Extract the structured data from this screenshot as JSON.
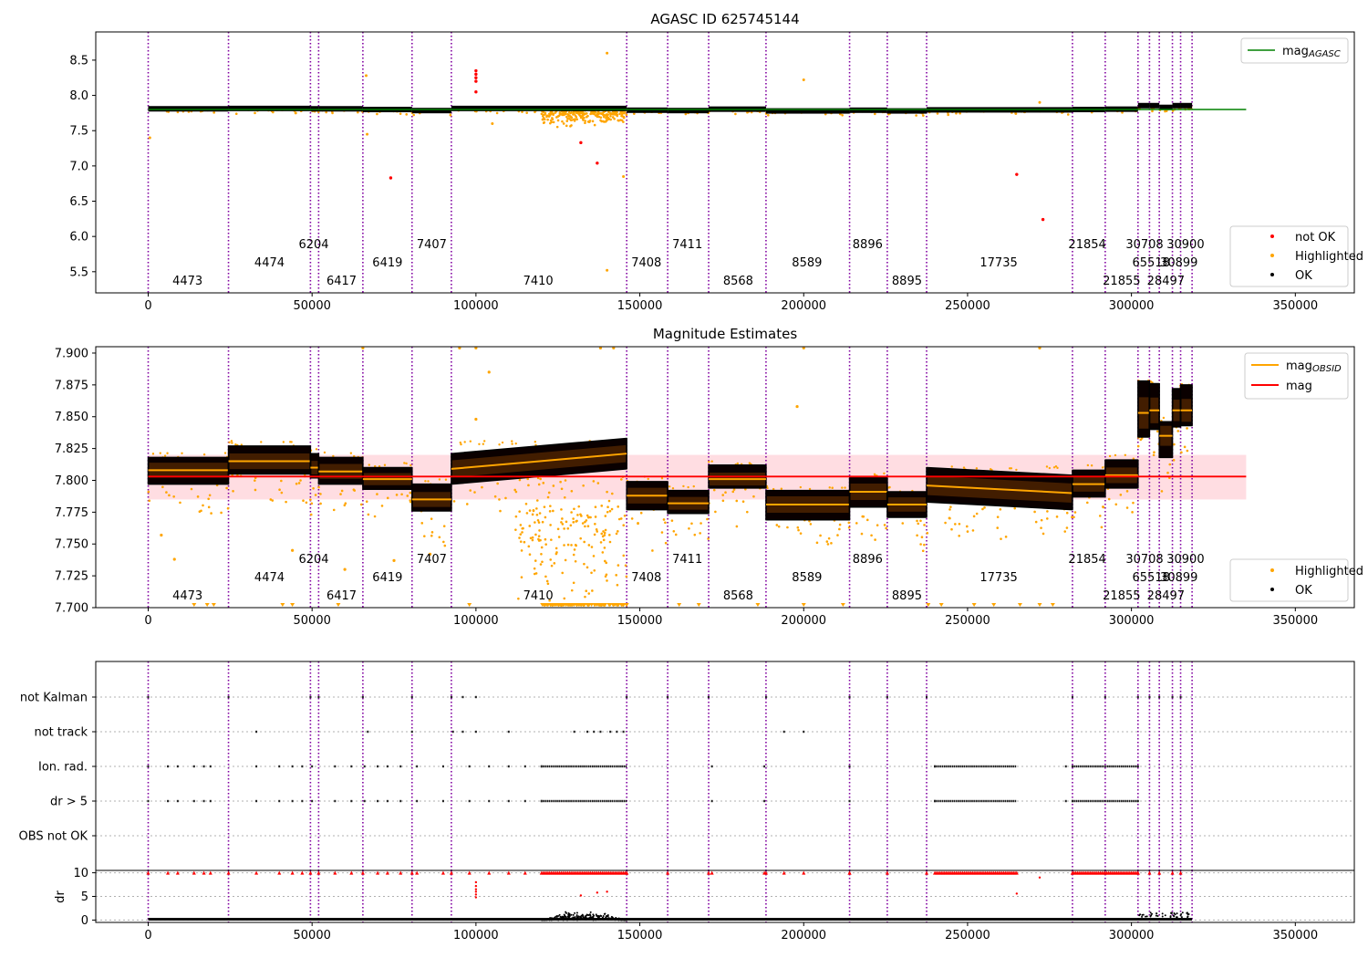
{
  "chart_data": [
    {
      "type": "scatter",
      "title": "AGASC ID 625745144",
      "xlim": [
        -16000,
        368000
      ],
      "ylim": [
        5.2,
        8.9
      ],
      "xticks": [
        0,
        50000,
        100000,
        150000,
        200000,
        250000,
        300000,
        350000
      ],
      "xtick_labels": [
        "0",
        "50000",
        "100000",
        "150000",
        "200000",
        "250000",
        "300000",
        "350000"
      ],
      "yticks": [
        5.5,
        6.0,
        6.5,
        7.0,
        7.5,
        8.0,
        8.5
      ],
      "ytick_labels": [
        "5.5",
        "6.0",
        "6.5",
        "7.0",
        "7.5",
        "8.0",
        "8.5"
      ],
      "mag_agasc": 7.8,
      "mag_agasc_x_range": [
        0,
        335000
      ],
      "legend_top": {
        "position": "top-right",
        "entries": [
          {
            "label": "mag",
            "sub": "AGASC",
            "color": "#008000",
            "kind": "line"
          }
        ]
      },
      "legend_bottom": {
        "position": "bottom-right",
        "entries": [
          {
            "label": "not OK",
            "color": "#ff0000",
            "kind": "dot"
          },
          {
            "label": "Highlighted",
            "color": "#ffa500",
            "kind": "dot"
          },
          {
            "label": "OK",
            "color": "#000000",
            "kind": "dot"
          }
        ]
      },
      "ok_segments": [
        {
          "x": [
            0,
            24500
          ],
          "y": 7.81
        },
        {
          "x": [
            24500,
            49500
          ],
          "y": 7.815
        },
        {
          "x": [
            49500,
            52000
          ],
          "y": 7.81
        },
        {
          "x": [
            52000,
            65500
          ],
          "y": 7.81
        },
        {
          "x": [
            65500,
            80500
          ],
          "y": 7.8
        },
        {
          "x": [
            80500,
            92500
          ],
          "y": 7.785
        },
        {
          "x": [
            92500,
            146000
          ],
          "y": 7.815
        },
        {
          "x": [
            146000,
            158500
          ],
          "y": 7.79
        },
        {
          "x": [
            158500,
            171000
          ],
          "y": 7.785
        },
        {
          "x": [
            171000,
            188500
          ],
          "y": 7.805
        },
        {
          "x": [
            188500,
            214000
          ],
          "y": 7.78
        },
        {
          "x": [
            214000,
            225500
          ],
          "y": 7.79
        },
        {
          "x": [
            225500,
            237500
          ],
          "y": 7.78
        },
        {
          "x": [
            237500,
            282000
          ],
          "y": 7.795
        },
        {
          "x": [
            282000,
            292000
          ],
          "y": 7.8
        },
        {
          "x": [
            292000,
            302000
          ],
          "y": 7.805
        },
        {
          "x": [
            302000,
            305500
          ],
          "y": 7.855
        },
        {
          "x": [
            305500,
            308500
          ],
          "y": 7.855
        },
        {
          "x": [
            308500,
            312500
          ],
          "y": 7.83
        },
        {
          "x": [
            312500,
            315000
          ],
          "y": 7.855
        },
        {
          "x": [
            315000,
            318500
          ],
          "y": 7.855
        }
      ],
      "not_ok_points": [
        [
          100000,
          8.35
        ],
        [
          100000,
          8.3
        ],
        [
          100000,
          8.25
        ],
        [
          100000,
          8.2
        ],
        [
          100000,
          8.05
        ],
        [
          74000,
          6.83
        ],
        [
          132000,
          7.33
        ],
        [
          137000,
          7.04
        ],
        [
          265000,
          6.88
        ],
        [
          273000,
          6.24
        ]
      ],
      "highlighted_points": [
        [
          500,
          7.4
        ],
        [
          66500,
          8.28
        ],
        [
          66800,
          7.45
        ],
        [
          140000,
          8.6
        ],
        [
          200000,
          8.22
        ],
        [
          140000,
          5.52
        ],
        [
          145000,
          6.85
        ],
        [
          272000,
          7.9
        ],
        [
          45000,
          7.75
        ],
        [
          105000,
          7.6
        ]
      ]
    },
    {
      "type": "scatter",
      "title": "Magnitude Estimates",
      "xlim": [
        -16000,
        368000
      ],
      "ylim": [
        7.7,
        7.905
      ],
      "xticks": [
        0,
        50000,
        100000,
        150000,
        200000,
        250000,
        300000,
        350000
      ],
      "xtick_labels": [
        "0",
        "50000",
        "100000",
        "150000",
        "200000",
        "250000",
        "300000",
        "350000"
      ],
      "yticks": [
        7.7,
        7.725,
        7.75,
        7.775,
        7.8,
        7.825,
        7.85,
        7.875,
        7.9
      ],
      "ytick_labels": [
        "7.700",
        "7.725",
        "7.750",
        "7.775",
        "7.800",
        "7.825",
        "7.850",
        "7.875",
        "7.900"
      ],
      "mag": 7.803,
      "mag_band": [
        7.785,
        7.82
      ],
      "mag_x_range": [
        0,
        335000
      ],
      "legend_top": {
        "position": "top-right",
        "entries": [
          {
            "label": "mag",
            "sub": "OBSID",
            "color": "#ffa500",
            "kind": "line"
          },
          {
            "label": "mag",
            "sub": "",
            "color": "#ff0000",
            "kind": "line"
          }
        ]
      },
      "legend_bottom": {
        "position": "bottom-right",
        "entries": [
          {
            "label": "Highlighted",
            "color": "#ffa500",
            "kind": "dot"
          },
          {
            "label": "OK",
            "color": "#000000",
            "kind": "dot"
          }
        ]
      },
      "obsid_segments": [
        {
          "x": [
            0,
            24500
          ],
          "mean": 7.808,
          "lo": 7.797,
          "hi": 7.818
        },
        {
          "x": [
            24500,
            49500
          ],
          "mean": 7.815,
          "lo": 7.805,
          "hi": 7.827
        },
        {
          "x": [
            49500,
            52000
          ],
          "mean": 7.81,
          "lo": 7.802,
          "hi": 7.821
        },
        {
          "x": [
            52000,
            65500
          ],
          "mean": 7.807,
          "lo": 7.797,
          "hi": 7.818
        },
        {
          "x": [
            65500,
            80500
          ],
          "mean": 7.801,
          "lo": 7.793,
          "hi": 7.81
        },
        {
          "x": [
            80500,
            92500
          ],
          "mean": 7.785,
          "lo": 7.776,
          "hi": 7.797
        },
        {
          "x": [
            92500,
            146000
          ],
          "mean": 7.815,
          "lo": 7.803,
          "hi": 7.827,
          "slope": 0.012
        },
        {
          "x": [
            146000,
            158500
          ],
          "mean": 7.788,
          "lo": 7.777,
          "hi": 7.799
        },
        {
          "x": [
            158500,
            171000
          ],
          "mean": 7.782,
          "lo": 7.774,
          "hi": 7.792
        },
        {
          "x": [
            171000,
            188500
          ],
          "mean": 7.801,
          "lo": 7.794,
          "hi": 7.812
        },
        {
          "x": [
            188500,
            214000
          ],
          "mean": 7.781,
          "lo": 7.769,
          "hi": 7.792
        },
        {
          "x": [
            214000,
            225500
          ],
          "mean": 7.791,
          "lo": 7.779,
          "hi": 7.802
        },
        {
          "x": [
            225500,
            237500
          ],
          "mean": 7.781,
          "lo": 7.771,
          "hi": 7.791
        },
        {
          "x": [
            237500,
            282000
          ],
          "mean": 7.793,
          "lo": 7.78,
          "hi": 7.807,
          "slope": -0.006
        },
        {
          "x": [
            282000,
            292000
          ],
          "mean": 7.797,
          "lo": 7.787,
          "hi": 7.808
        },
        {
          "x": [
            292000,
            302000
          ],
          "mean": 7.804,
          "lo": 7.794,
          "hi": 7.816
        },
        {
          "x": [
            302000,
            305500
          ],
          "mean": 7.853,
          "lo": 7.834,
          "hi": 7.878
        },
        {
          "x": [
            305500,
            308500
          ],
          "mean": 7.855,
          "lo": 7.84,
          "hi": 7.876
        },
        {
          "x": [
            308500,
            312500
          ],
          "mean": 7.835,
          "lo": 7.818,
          "hi": 7.846
        },
        {
          "x": [
            312500,
            315000
          ],
          "mean": 7.855,
          "lo": 7.842,
          "hi": 7.872
        },
        {
          "x": [
            315000,
            318500
          ],
          "mean": 7.855,
          "lo": 7.843,
          "hi": 7.875
        }
      ],
      "highlighted_points": [
        [
          65500,
          7.904
        ],
        [
          95000,
          7.904
        ],
        [
          100000,
          7.904
        ],
        [
          138000,
          7.904
        ],
        [
          142000,
          7.904
        ],
        [
          200000,
          7.904
        ],
        [
          272000,
          7.904
        ],
        [
          104000,
          7.885
        ],
        [
          100000,
          7.848
        ],
        [
          198000,
          7.858
        ],
        [
          4000,
          7.757
        ],
        [
          8000,
          7.738
        ],
        [
          44000,
          7.745
        ],
        [
          60000,
          7.73
        ],
        [
          75000,
          7.737
        ],
        [
          86000,
          7.742
        ]
      ]
    },
    {
      "type": "scatter",
      "title": "",
      "xlim": [
        -16000,
        368000
      ],
      "categories": [
        "not Kalman",
        "not track",
        "Ion. rad.",
        "dr > 5",
        "OBS not OK"
      ],
      "flags": {
        "not Kalman": [
          0,
          24500,
          49500,
          52000,
          65500,
          80500,
          92500,
          96000,
          100000,
          146000,
          158500,
          171000,
          188500,
          214000,
          225500,
          237500,
          282000,
          292000,
          302000,
          305500,
          308500,
          312500,
          315000
        ],
        "not track": [
          33000,
          67000,
          80500,
          93000,
          96000,
          100000,
          110000,
          130000,
          134000,
          136000,
          138000,
          141000,
          143000,
          145000,
          194000,
          200000
        ],
        "Ion. rad.": [
          0,
          6000,
          9000,
          14000,
          17000,
          19000,
          33000,
          40000,
          44000,
          47000,
          50000,
          57000,
          62000,
          66000,
          70000,
          73000,
          77000,
          82000,
          90000,
          98000,
          104000,
          110000,
          115000,
          120000,
          172000,
          188000,
          214000,
          240000,
          280000,
          282000,
          302000
        ],
        "dr > 5": [
          0,
          6000,
          9000,
          14000,
          17000,
          19000,
          33000,
          40000,
          44000,
          47000,
          50000,
          57000,
          62000,
          66000,
          70000,
          73000,
          77000,
          82000,
          90000,
          98000,
          104000,
          110000,
          115000,
          120000,
          172000,
          188000,
          214000,
          240000,
          280000,
          282000,
          302000
        ],
        "OBS not OK": []
      },
      "dense_ranges": {
        "Ion. rad.": [
          [
            120000,
            146000
          ],
          [
            240000,
            265000
          ],
          [
            282000,
            302000
          ]
        ],
        "dr > 5": [
          [
            120000,
            146000
          ],
          [
            240000,
            265000
          ],
          [
            282000,
            302000
          ]
        ]
      }
    },
    {
      "type": "scatter",
      "title": "",
      "ylabel": "dr",
      "xlim": [
        -16000,
        368000
      ],
      "ylim": [
        -0.5,
        10.5
      ],
      "xticks": [
        0,
        50000,
        100000,
        150000,
        200000,
        250000,
        300000,
        350000
      ],
      "xtick_labels": [
        "0",
        "50000",
        "100000",
        "150000",
        "200000",
        "250000",
        "300000",
        "350000"
      ],
      "yticks": [
        0,
        5,
        10
      ],
      "ytick_labels": [
        "0",
        "5",
        "10"
      ],
      "red_points": [
        [
          100000,
          8.0
        ],
        [
          100000,
          7.2
        ],
        [
          100000,
          6.5
        ],
        [
          100000,
          6.0
        ],
        [
          100000,
          5.4
        ],
        [
          100000,
          4.8
        ],
        [
          140000,
          6.0
        ],
        [
          265000,
          5.6
        ],
        [
          272000,
          9.0
        ],
        [
          132000,
          5.2
        ],
        [
          137000,
          5.8
        ]
      ],
      "capped_ranges": [
        [
          120000,
          146000
        ],
        [
          240000,
          265000
        ],
        [
          282000,
          302000
        ]
      ],
      "dr_bump": [
        120000,
        146000
      ]
    }
  ],
  "obsid_boundaries": [
    0,
    24500,
    49500,
    52000,
    65500,
    80500,
    92500,
    146000,
    158500,
    171000,
    188500,
    214000,
    225500,
    237500,
    282000,
    292000,
    302000,
    305500,
    308500,
    312500,
    315000,
    318500
  ],
  "obsid_labels": [
    {
      "text": "4473",
      "x": 12000,
      "row": 2
    },
    {
      "text": "4474",
      "x": 37000,
      "row": 1
    },
    {
      "text": "6204",
      "x": 50500,
      "row": 0
    },
    {
      "text": "6417",
      "x": 59000,
      "row": 2
    },
    {
      "text": "6419",
      "x": 73000,
      "row": 1
    },
    {
      "text": "7407",
      "x": 86500,
      "row": 0
    },
    {
      "text": "7410",
      "x": 119000,
      "row": 2
    },
    {
      "text": "7408",
      "x": 152000,
      "row": 1
    },
    {
      "text": "7411",
      "x": 164500,
      "row": 0
    },
    {
      "text": "8568",
      "x": 180000,
      "row": 2
    },
    {
      "text": "8589",
      "x": 201000,
      "row": 1
    },
    {
      "text": "8896",
      "x": 219500,
      "row": 0
    },
    {
      "text": "8895",
      "x": 231500,
      "row": 2
    },
    {
      "text": "17735",
      "x": 259500,
      "row": 1
    },
    {
      "text": "21854",
      "x": 286500,
      "row": 0
    },
    {
      "text": "21855",
      "x": 297000,
      "row": 2
    },
    {
      "text": "30708",
      "x": 304000,
      "row": 0
    },
    {
      "text": "65518",
      "x": 306000,
      "row": 1
    },
    {
      "text": "28497",
      "x": 310500,
      "row": 2
    },
    {
      "text": "30899",
      "x": 314500,
      "row": 1
    },
    {
      "text": "30900",
      "x": 316500,
      "row": 0
    }
  ]
}
